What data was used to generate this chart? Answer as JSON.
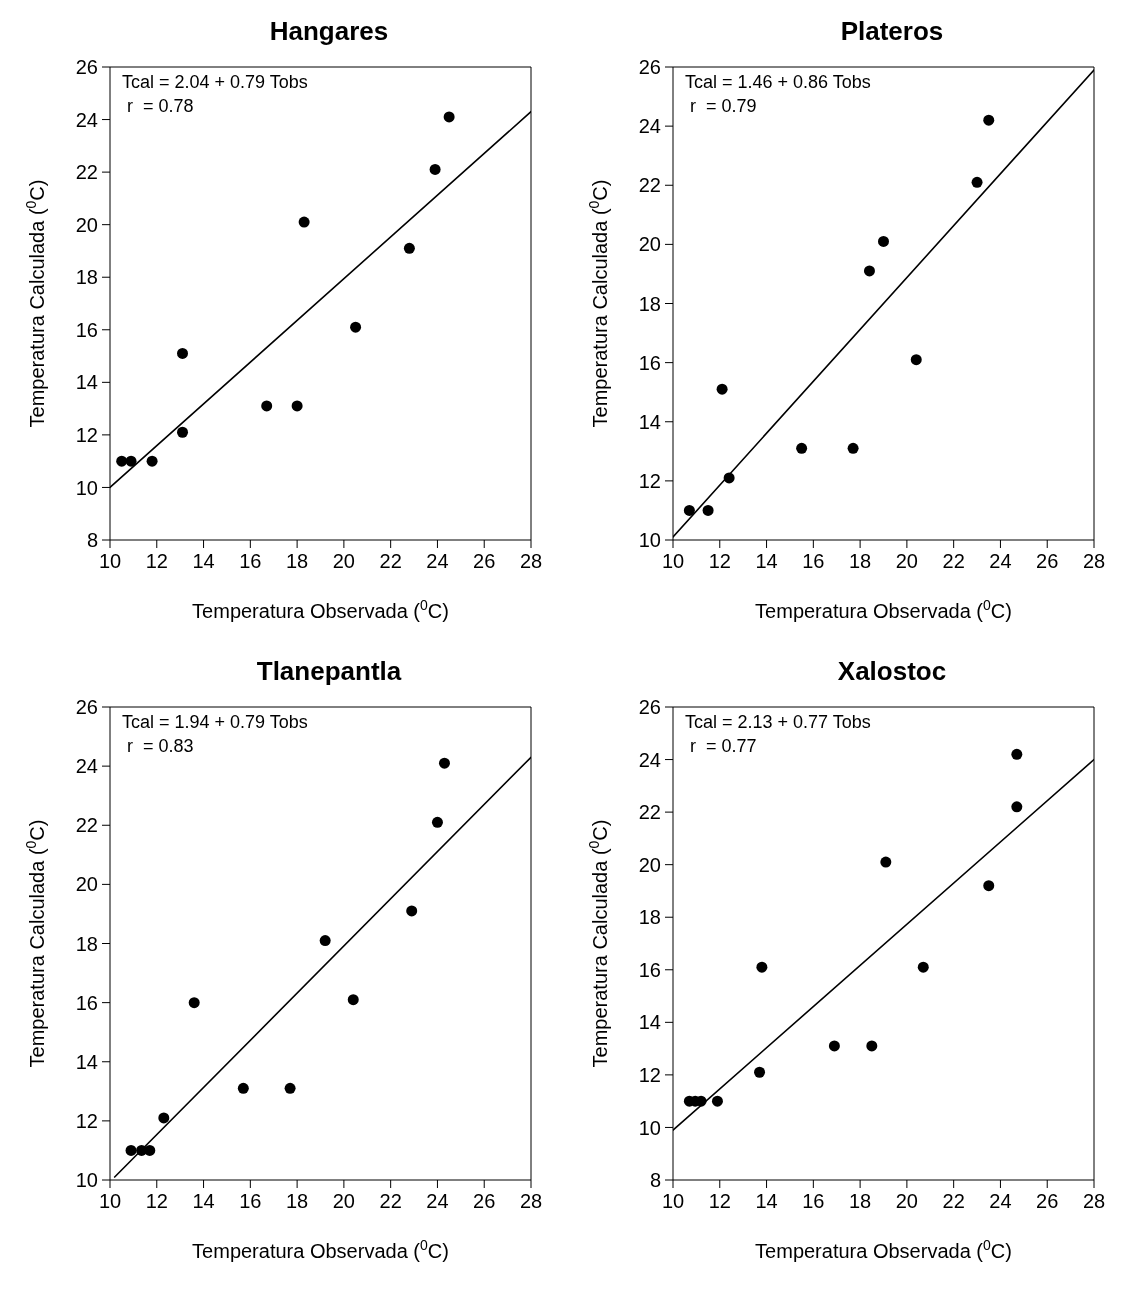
{
  "chart_data": [
    {
      "type": "scatter",
      "title": "Hangares",
      "xlabel": "Temperatura Observada ($^{0}$C)",
      "ylabel": "Temperatura Calculada ($^{0}$C)",
      "xlim": [
        10,
        28
      ],
      "xticks": [
        10,
        12,
        14,
        16,
        18,
        20,
        22,
        24,
        26,
        28
      ],
      "ylim": [
        8,
        26
      ],
      "yticks": [
        8,
        10,
        12,
        14,
        16,
        18,
        20,
        22,
        24,
        26
      ],
      "marker": "circle",
      "annotations": [
        "Tcal = 2.04 + 0.79 Tobs",
        " r  = 0.78"
      ],
      "series": [
        {
          "type": "scatter",
          "color": "#000000",
          "x": [
            10.5,
            10.9,
            11.8,
            13.1,
            13.1,
            16.7,
            18.0,
            18.3,
            20.5,
            22.8,
            23.9,
            24.5
          ],
          "values": [
            11,
            11,
            11,
            12.1,
            15.1,
            13.1,
            13.1,
            20.1,
            16.1,
            19.1,
            22.1,
            24.1
          ]
        },
        {
          "type": "line",
          "color": "#000000",
          "marker": "none",
          "x": [
            10,
            28
          ],
          "values": [
            10.0,
            24.3
          ]
        }
      ]
    },
    {
      "type": "scatter",
      "title": "Plateros",
      "xlabel": "Temperatura Observada ($^{0}$C)",
      "ylabel": "Temperatura Calculada ($^{0}$C)",
      "xlim": [
        10,
        28
      ],
      "xticks": [
        10,
        12,
        14,
        16,
        18,
        20,
        22,
        24,
        26,
        28
      ],
      "ylim": [
        10,
        26
      ],
      "yticks": [
        10,
        12,
        14,
        16,
        18,
        20,
        22,
        24,
        26
      ],
      "marker": "circle",
      "annotations": [
        "Tcal = 1.46 + 0.86 Tobs",
        " r  = 0.79"
      ],
      "series": [
        {
          "type": "scatter",
          "color": "#000000",
          "x": [
            10.7,
            11.5,
            12.1,
            12.4,
            15.5,
            17.7,
            18.4,
            19.0,
            20.4,
            23.0,
            23.5
          ],
          "values": [
            11,
            11,
            15.1,
            12.1,
            13.1,
            13.1,
            19.1,
            20.1,
            16.1,
            22.1,
            24.2
          ]
        },
        {
          "type": "line",
          "color": "#000000",
          "marker": "none",
          "x": [
            10,
            28
          ],
          "values": [
            10.1,
            25.9
          ]
        }
      ]
    },
    {
      "type": "scatter",
      "title": "Tlanepantla",
      "xlabel": "Temperatura Observada ($^{0}$C)",
      "ylabel": "Temperatura Calculada ($^{0}$C)",
      "xlim": [
        10,
        28
      ],
      "xticks": [
        10,
        12,
        14,
        16,
        18,
        20,
        22,
        24,
        26,
        28
      ],
      "ylim": [
        10,
        26
      ],
      "yticks": [
        10,
        12,
        14,
        16,
        18,
        20,
        22,
        24,
        26
      ],
      "marker": "circle",
      "annotations": [
        "Tcal = 1.94 + 0.79 Tobs",
        " r  = 0.83"
      ],
      "series": [
        {
          "type": "scatter",
          "color": "#000000",
          "x": [
            10.9,
            11.35,
            11.7,
            12.3,
            13.6,
            15.7,
            17.7,
            19.2,
            20.4,
            22.9,
            24.0,
            24.3
          ],
          "values": [
            11,
            11,
            11,
            12.1,
            16.0,
            13.1,
            13.1,
            18.1,
            16.1,
            19.1,
            22.1,
            24.1
          ]
        },
        {
          "type": "line",
          "color": "#000000",
          "marker": "none",
          "x": [
            10.2,
            28
          ],
          "values": [
            10.1,
            24.3
          ]
        }
      ]
    },
    {
      "type": "scatter",
      "title": "Xalostoc",
      "xlabel": "Temperatura Observada ($^{0}$C)",
      "ylabel": "Temperatura Calculada ($^{0}$C)",
      "xlim": [
        10,
        28
      ],
      "xticks": [
        10,
        12,
        14,
        16,
        18,
        20,
        22,
        24,
        26,
        28
      ],
      "ylim": [
        8,
        26
      ],
      "yticks": [
        8,
        10,
        12,
        14,
        16,
        18,
        20,
        22,
        24,
        26
      ],
      "marker": "circle",
      "annotations": [
        "Tcal = 2.13 + 0.77 Tobs",
        " r  = 0.77"
      ],
      "series": [
        {
          "type": "scatter",
          "color": "#000000",
          "x": [
            10.7,
            10.95,
            11.2,
            11.9,
            13.7,
            13.8,
            16.9,
            18.5,
            19.1,
            20.7,
            23.5,
            24.7,
            24.7
          ],
          "values": [
            11,
            11,
            11,
            11,
            12.1,
            16.1,
            13.1,
            13.1,
            20.1,
            16.1,
            19.2,
            22.2,
            24.2
          ]
        },
        {
          "type": "line",
          "color": "#000000",
          "marker": "none",
          "x": [
            10,
            28
          ],
          "values": [
            9.9,
            24.0
          ]
        }
      ]
    }
  ]
}
